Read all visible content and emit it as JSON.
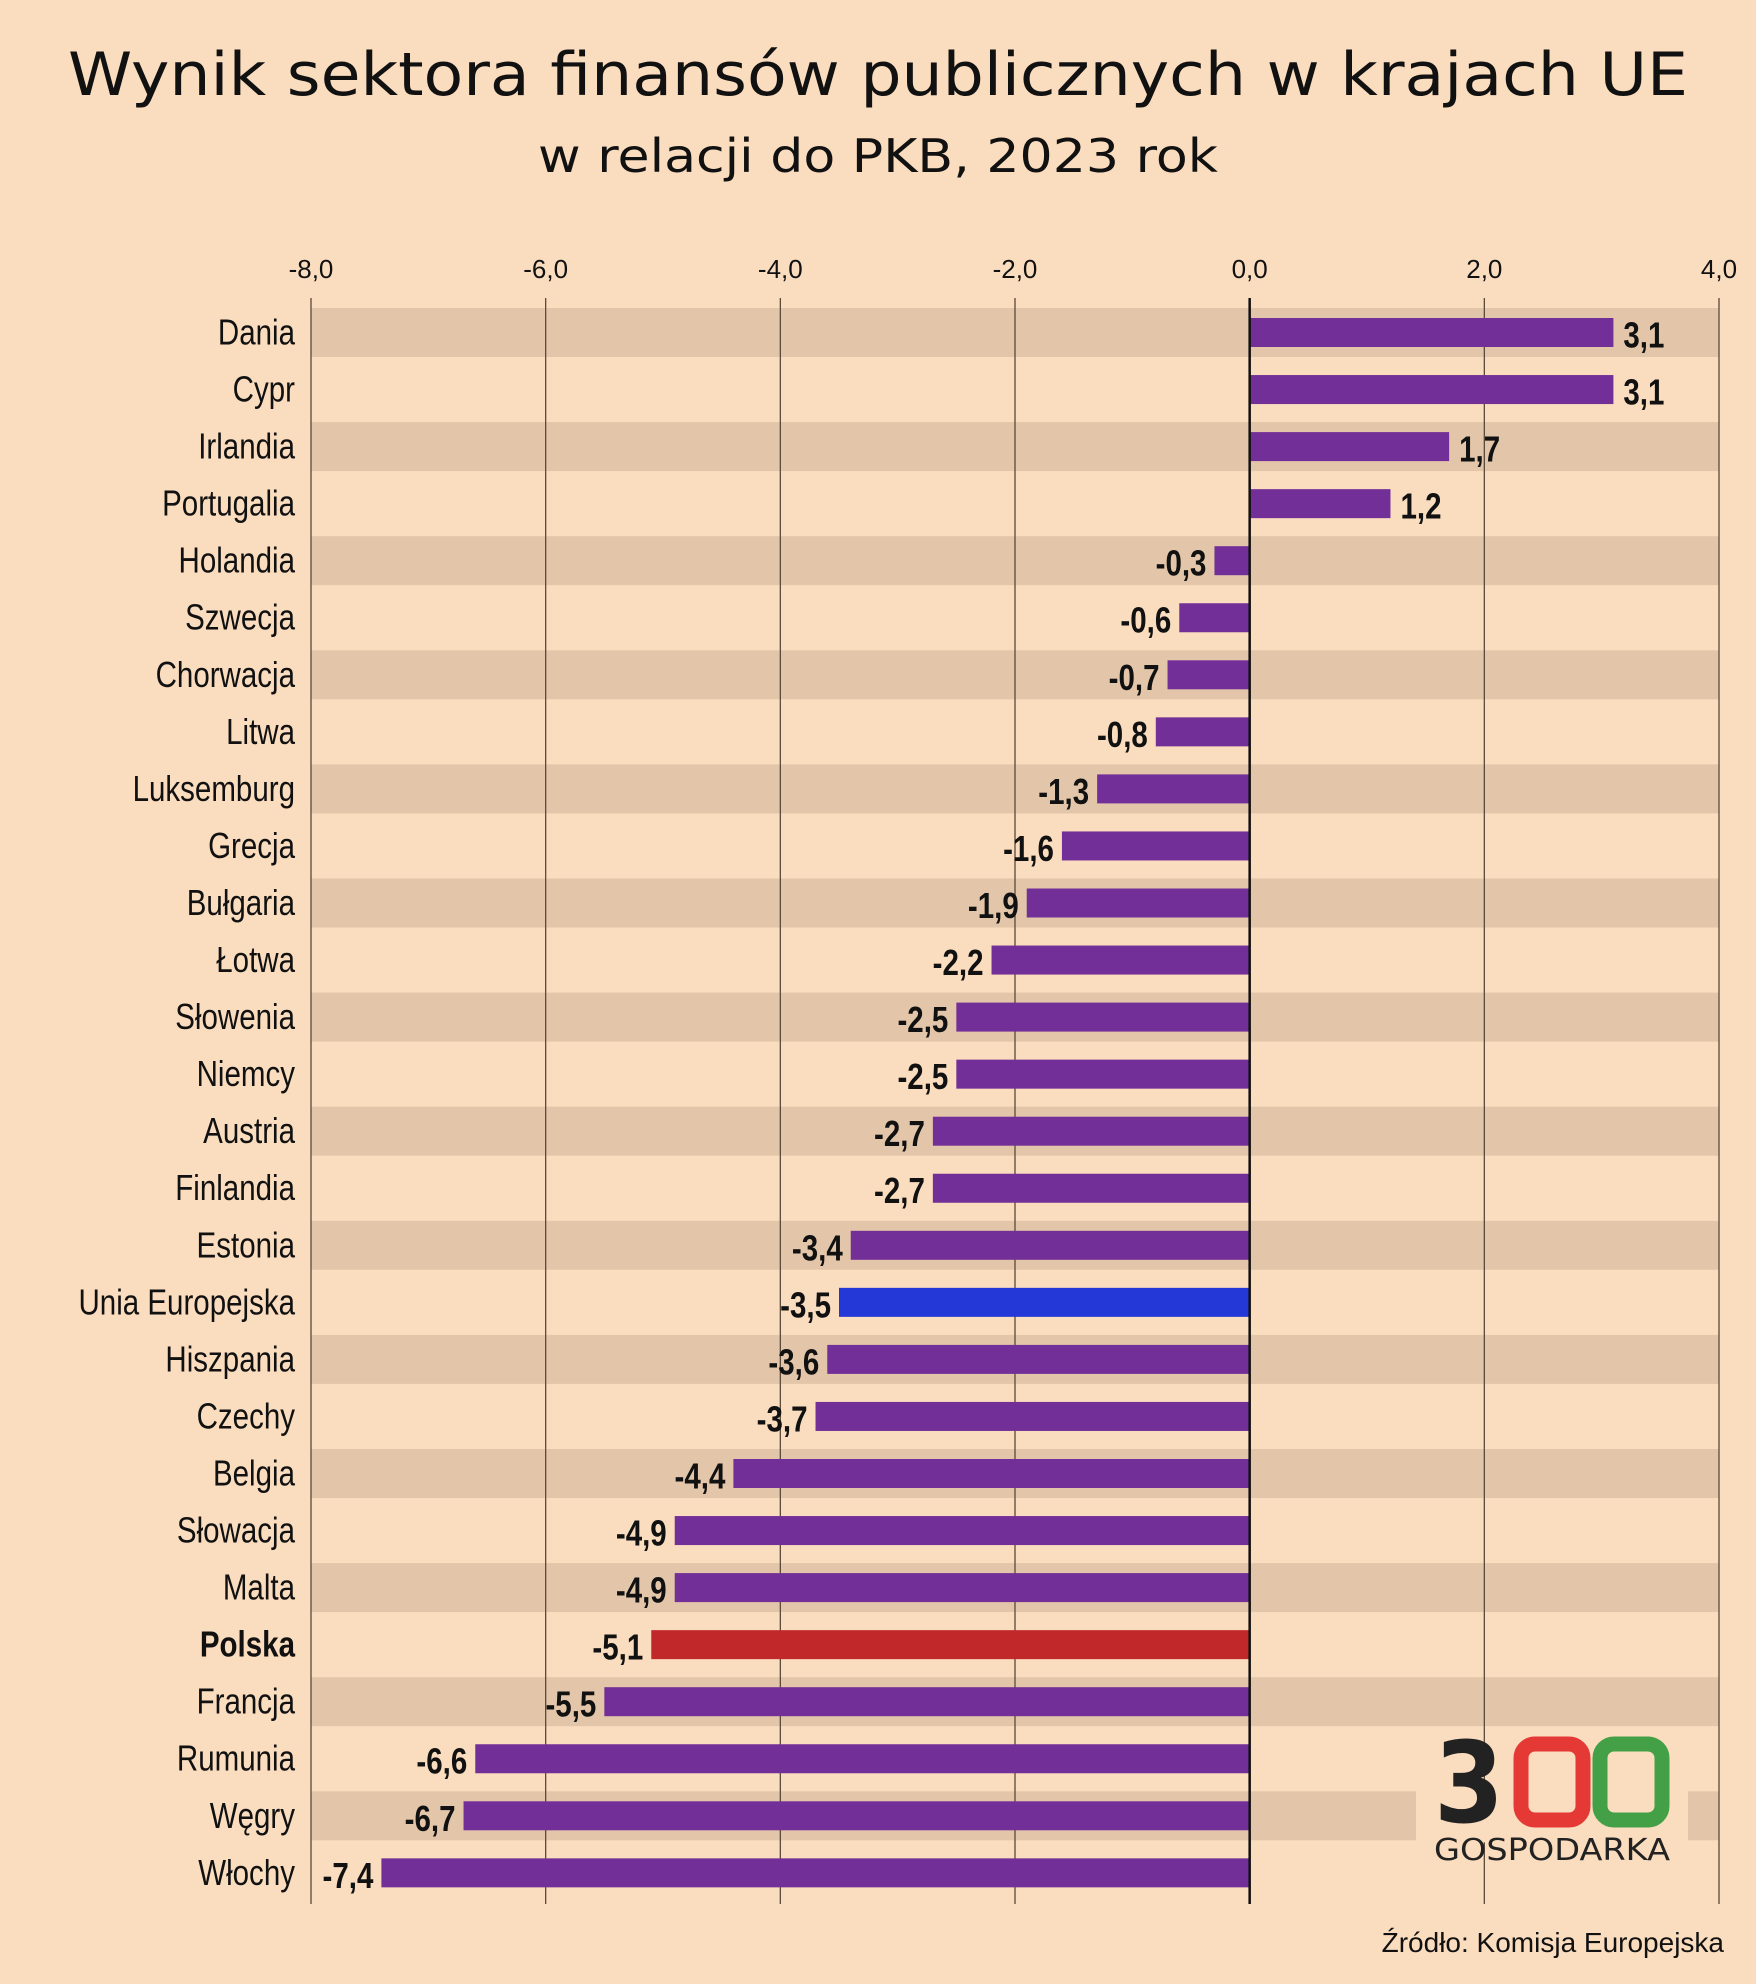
{
  "colors": {
    "background": "#FADCBE",
    "band": "#E3C6A9",
    "bar_default": "#722F97",
    "bar_eu": "#2438D8",
    "bar_poland": "#C0282A",
    "gridline": "#5a4a3a",
    "logo_dark": "#222222",
    "logo_red": "#E53935",
    "logo_green": "#43A047"
  },
  "logo": {
    "digits": [
      "3",
      "0",
      "0"
    ],
    "text": "GOSPODARKA"
  },
  "source": "Źródło: Komisja Europejska",
  "chart_data": {
    "type": "bar",
    "orientation": "horizontal",
    "title": "Wynik sektora finansów publicznych w krajach UE",
    "subtitle": "w relacji do PKB, 2023 rok",
    "xlabel": "",
    "ylabel": "",
    "xlim": [
      -8,
      4
    ],
    "xticks": [
      -8,
      -6,
      -4,
      -2,
      0,
      2,
      4
    ],
    "xtick_labels": [
      "-8,0",
      "-6,0",
      "-4,0",
      "-2,0",
      "0,0",
      "2,0",
      "4,0"
    ],
    "grid": true,
    "legend": "none",
    "categories": [
      "Dania",
      "Cypr",
      "Irlandia",
      "Portugalia",
      "Holandia",
      "Szwecja",
      "Chorwacja",
      "Litwa",
      "Luksemburg",
      "Grecja",
      "Bułgaria",
      "Łotwa",
      "Słowenia",
      "Niemcy",
      "Austria",
      "Finlandia",
      "Estonia",
      "Unia Europejska",
      "Hiszpania",
      "Czechy",
      "Belgia",
      "Słowacja",
      "Malta",
      "Polska",
      "Francja",
      "Rumunia",
      "Węgry",
      "Włochy"
    ],
    "values": [
      3.1,
      3.1,
      1.7,
      1.2,
      -0.3,
      -0.6,
      -0.7,
      -0.8,
      -1.3,
      -1.6,
      -1.9,
      -2.2,
      -2.5,
      -2.5,
      -2.7,
      -2.7,
      -3.4,
      -3.5,
      -3.6,
      -3.7,
      -4.4,
      -4.9,
      -4.9,
      -5.1,
      -5.5,
      -6.6,
      -6.7,
      -7.4
    ],
    "value_labels": [
      "3,1",
      "3,1",
      "1,7",
      "1,2",
      "-0,3",
      "-0,6",
      "-0,7",
      "-0,8",
      "-1,3",
      "-1,6",
      "-1,9",
      "-2,2",
      "-2,5",
      "-2,5",
      "-2,7",
      "-2,7",
      "-3,4",
      "-3,5",
      "-3,6",
      "-3,7",
      "-4,4",
      "-4,9",
      "-4,9",
      "-5,1",
      "-5,5",
      "-6,6",
      "-6,7",
      "-7,4"
    ],
    "highlights": {
      "Unia Europejska": "eu",
      "Polska": "poland"
    },
    "bold_categories": [
      "Polska"
    ]
  }
}
